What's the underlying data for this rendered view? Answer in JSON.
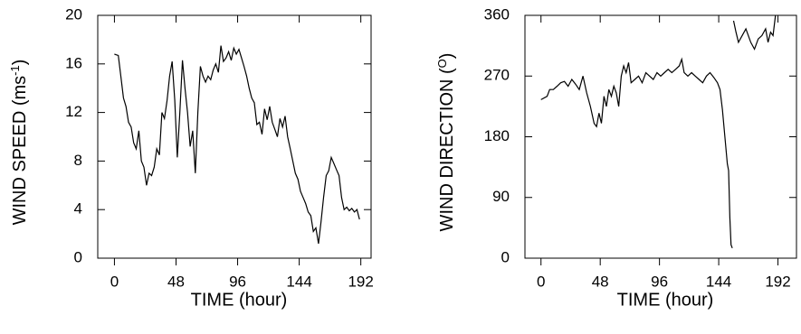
{
  "chart_data": [
    {
      "type": "line",
      "ylabel": {
        "text": "WIND SPEED (ms",
        "sup": "-1",
        "end": ")"
      },
      "xlabel": "TIME (hour)",
      "x": [
        0,
        3,
        5,
        7,
        9,
        11,
        13,
        15,
        17,
        19,
        21,
        23,
        25,
        27,
        29,
        31,
        33,
        35,
        37,
        39,
        41,
        43,
        45,
        47,
        49,
        51,
        53,
        55,
        57,
        59,
        61,
        63,
        65,
        67,
        69,
        71,
        73,
        75,
        77,
        79,
        81,
        83,
        85,
        87,
        89,
        91,
        93,
        95,
        97,
        99,
        101,
        103,
        105,
        107,
        109,
        111,
        113,
        115,
        117,
        119,
        121,
        123,
        125,
        127,
        129,
        131,
        133,
        135,
        137,
        139,
        141,
        143,
        145,
        147,
        149,
        151,
        153,
        155,
        157,
        159,
        161,
        163,
        165,
        167,
        169,
        171,
        173,
        175,
        177,
        179,
        181,
        183,
        185,
        187,
        189,
        191
      ],
      "series": [
        {
          "color": "#000000",
          "values": [
            16.8,
            16.7,
            15,
            13.2,
            12.5,
            11.2,
            10.8,
            9.5,
            9,
            10.5,
            8,
            7.5,
            6,
            7,
            6.8,
            7.5,
            9,
            8.5,
            12,
            11.5,
            13,
            15,
            16.2,
            13,
            8.3,
            12,
            16.3,
            14,
            12,
            9.2,
            10.5,
            7,
            12,
            15.8,
            15,
            14.5,
            15,
            14.7,
            15.5,
            16,
            15.3,
            17.5,
            16.2,
            16.5,
            17,
            16.3,
            17.3,
            16.8,
            17.2,
            16.5,
            15.8,
            15,
            14,
            13.2,
            12.8,
            11,
            11.2,
            10.2,
            12.3,
            11.4,
            12.5,
            11.2,
            10.6,
            10,
            11.5,
            10.8,
            11.7,
            10,
            9,
            8,
            7,
            6.5,
            5.5,
            5,
            4.5,
            3.8,
            3.5,
            2.2,
            2.5,
            1.2,
            3,
            5,
            6.8,
            7.2,
            8.3,
            7.8,
            7.3,
            6.8,
            5,
            4,
            4.2,
            3.9,
            4.1,
            3.8,
            4,
            3.2
          ]
        }
      ],
      "xlim": [
        -13,
        200
      ],
      "xticks": [
        0,
        48,
        96,
        144,
        192
      ],
      "ylim": [
        0,
        20
      ],
      "yticks": [
        0,
        4,
        8,
        12,
        16,
        20
      ]
    },
    {
      "type": "line",
      "ylabel": {
        "text": "WIND DIRECTION (",
        "sup": "O",
        "end": ")"
      },
      "xlabel": "TIME (hour)",
      "x": [
        0,
        5,
        7,
        10,
        13,
        16,
        19,
        22,
        25,
        28,
        31,
        34,
        37,
        40,
        43,
        45,
        47,
        49,
        51,
        53,
        55,
        57,
        59,
        61,
        63,
        65,
        67,
        69,
        71,
        73,
        76,
        79,
        82,
        85,
        88,
        91,
        94,
        97,
        100,
        103,
        106,
        109,
        112,
        114,
        116,
        119,
        122,
        125,
        128,
        131,
        134,
        137,
        140,
        143,
        145,
        147,
        149,
        151,
        152,
        153,
        154,
        155,
        155.5,
        156,
        158,
        160,
        163,
        166,
        170,
        173,
        176,
        179,
        182,
        184,
        186,
        188,
        190
      ],
      "series": [
        {
          "color": "#000000",
          "values": [
            235,
            240,
            250,
            250,
            255,
            260,
            262,
            255,
            265,
            258,
            250,
            270,
            245,
            225,
            200,
            195,
            215,
            200,
            240,
            225,
            250,
            240,
            255,
            245,
            225,
            270,
            285,
            275,
            290,
            260,
            265,
            270,
            260,
            275,
            270,
            265,
            275,
            270,
            275,
            280,
            275,
            280,
            285,
            295,
            275,
            270,
            275,
            270,
            265,
            260,
            270,
            275,
            268,
            260,
            250,
            220,
            180,
            140,
            130,
            60,
            20,
            15,
            null,
            352,
            335,
            320,
            330,
            340,
            320,
            310,
            325,
            330,
            340,
            320,
            335,
            330,
            360
          ]
        }
      ],
      "xlim": [
        -13,
        207
      ],
      "xticks": [
        0,
        48,
        96,
        144,
        192
      ],
      "ylim": [
        0,
        360
      ],
      "yticks": [
        0,
        90,
        180,
        270,
        360
      ]
    }
  ]
}
